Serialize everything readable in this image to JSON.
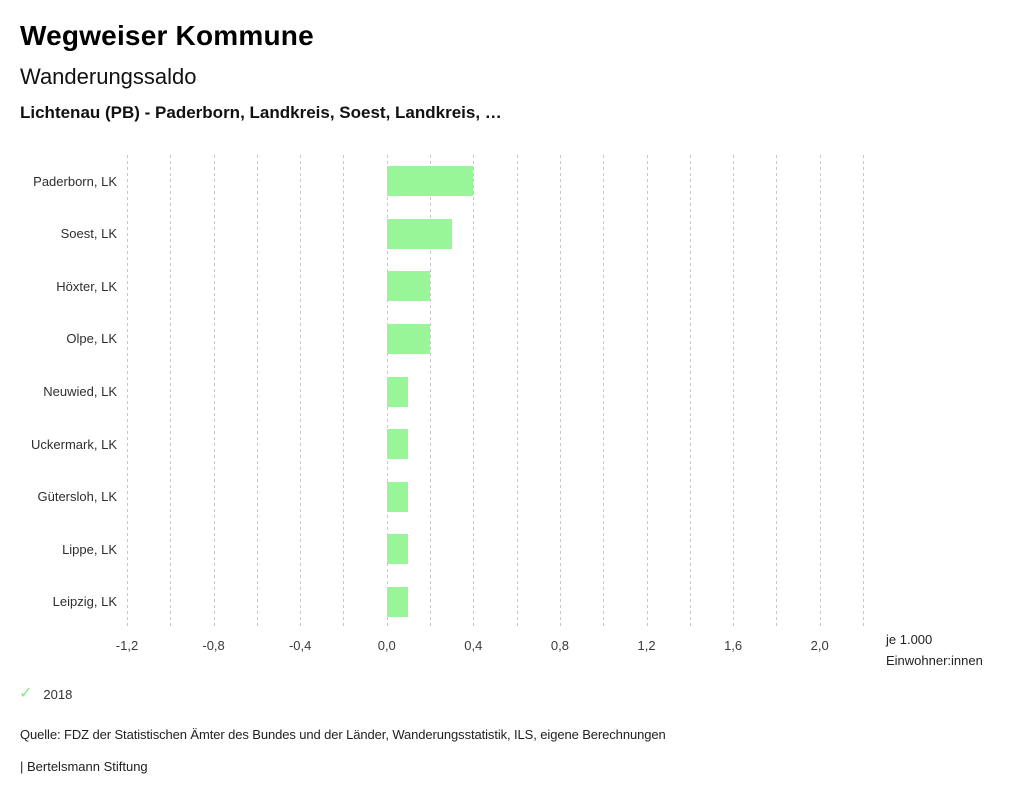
{
  "header": {
    "title": "Wegweiser Kommune",
    "subtitle": "Wanderungssaldo",
    "context": "Lichtenau (PB) - Paderborn, Landkreis, Soest, Landkreis, …"
  },
  "chart_data": {
    "type": "bar",
    "orientation": "horizontal",
    "title": "Wanderungssaldo",
    "categories": [
      "Paderborn, LK",
      "Soest, LK",
      "Höxter, LK",
      "Olpe, LK",
      "Neuwied, LK",
      "Uckermark, LK",
      "Gütersloh, LK",
      "Lippe, LK",
      "Leipzig, LK"
    ],
    "series": [
      {
        "name": "2018",
        "values": [
          0.4,
          0.3,
          0.2,
          0.2,
          0.1,
          0.1,
          0.1,
          0.1,
          0.1
        ]
      }
    ],
    "xlim": [
      -1.2,
      2.2
    ],
    "grid": true,
    "grid_step": 0.2,
    "tick_values": [
      -1.2,
      -0.8,
      -0.4,
      0.0,
      0.4,
      0.8,
      1.2,
      1.6,
      2.0
    ],
    "tick_labels": [
      "-1,2",
      "-0,8",
      "-0,4",
      "0,0",
      "0,4",
      "0,8",
      "1,2",
      "1,6",
      "2,0"
    ],
    "unit_label_line1": "je 1.000",
    "unit_label_line2": "Einwohner:innen",
    "bar_color": "#98f698",
    "grid_color": "#c6c6c6"
  },
  "legend": {
    "year": "2018",
    "check_icon": "✓",
    "check_color": "#8fe58f"
  },
  "footer": {
    "source": "Quelle: FDZ der Statistischen Ämter des Bundes und der Länder, Wanderungsstatistik, ILS, eigene Berechnungen",
    "attribution": "| Bertelsmann Stiftung"
  }
}
